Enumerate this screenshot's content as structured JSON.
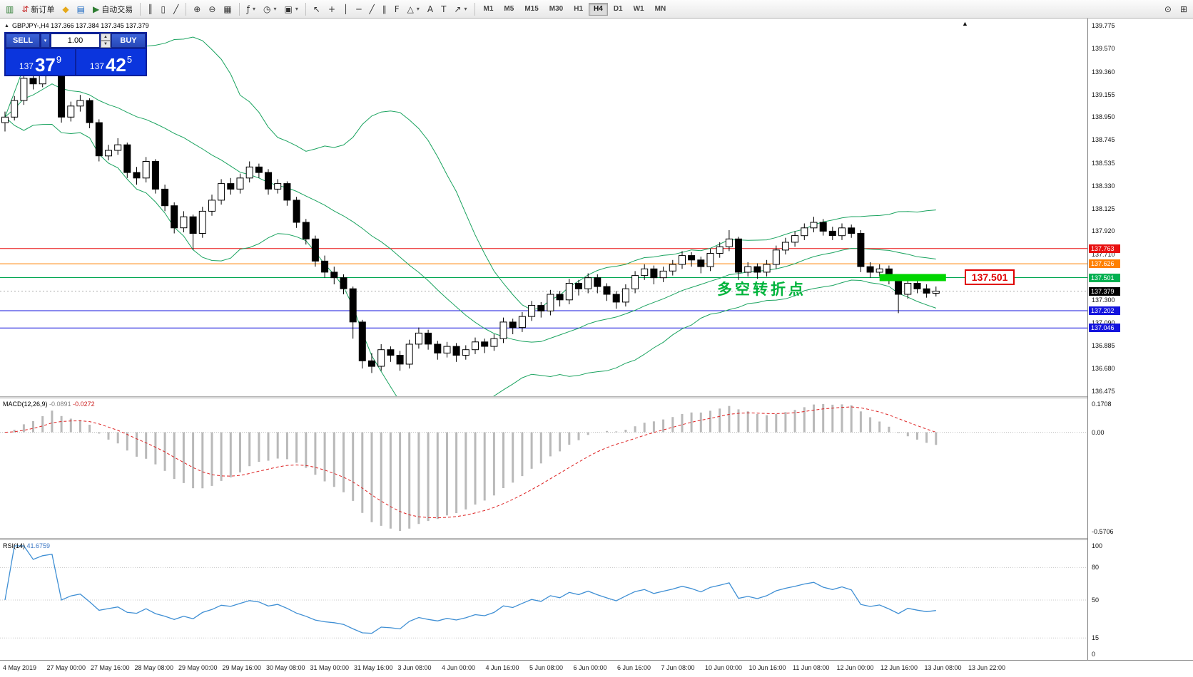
{
  "window": {
    "title": "GBPJPY-,H4"
  },
  "toolbar": {
    "groups": [
      {
        "name": "trade-group",
        "items": [
          {
            "name": "charts-window-button",
            "glyph": "▥",
            "color": "#2e7d32"
          },
          {
            "name": "new-order-button",
            "glyph": "⇵",
            "color": "#c62828",
            "label": "新订单"
          },
          {
            "name": "chart-profiles-button",
            "glyph": "◆",
            "color": "#e6a817"
          },
          {
            "name": "market-depth-button",
            "glyph": "▤",
            "color": "#1565c0"
          },
          {
            "name": "autotrading-button",
            "glyph": "▶",
            "color": "#2e7d32",
            "label": "自动交易"
          }
        ]
      },
      {
        "name": "chart-type-group",
        "items": [
          {
            "name": "bar-chart-button",
            "glyph": "║"
          },
          {
            "name": "candlestick-chart-button",
            "glyph": "▯"
          },
          {
            "name": "line-chart-button",
            "glyph": "╱"
          }
        ]
      },
      {
        "name": "zoom-group",
        "items": [
          {
            "name": "zoom-in-button",
            "glyph": "⊕"
          },
          {
            "name": "zoom-out-button",
            "glyph": "⊖"
          },
          {
            "name": "tile-windows-button",
            "glyph": "▦"
          }
        ]
      },
      {
        "name": "chart-tools-group",
        "items": [
          {
            "name": "indicators-button",
            "glyph": "ƒ",
            "caret": true
          },
          {
            "name": "periods-button",
            "glyph": "◷",
            "caret": true
          },
          {
            "name": "templates-button",
            "glyph": "▣",
            "caret": true
          }
        ]
      },
      {
        "name": "draw-tools-group",
        "items": [
          {
            "name": "cursor-button",
            "glyph": "↖"
          },
          {
            "name": "crosshair-button",
            "glyph": "+"
          },
          {
            "name": "vertical-line-button",
            "glyph": "│"
          },
          {
            "name": "horizontal-line-button",
            "glyph": "─"
          },
          {
            "name": "trendline-button",
            "glyph": "╱"
          },
          {
            "name": "channel-button",
            "glyph": "∥"
          },
          {
            "name": "fibonacci-button",
            "glyph": "F"
          },
          {
            "name": "shapes-button",
            "glyph": "△",
            "caret": true
          },
          {
            "name": "text-button",
            "glyph": "A"
          },
          {
            "name": "text-label-button",
            "glyph": "T"
          },
          {
            "name": "arrows-button",
            "glyph": "↗",
            "caret": true
          }
        ]
      }
    ],
    "timeframes": {
      "items": [
        "M1",
        "M5",
        "M15",
        "M30",
        "H1",
        "H4",
        "D1",
        "W1",
        "MN"
      ],
      "selected": "H4"
    },
    "right_items": [
      {
        "name": "search-button",
        "glyph": "⊙"
      },
      {
        "name": "new-chart-button",
        "glyph": "⊞"
      }
    ]
  },
  "symbol_info": {
    "arrow": "▲",
    "text": "GBPJPY-,H4 137.366 137.384 137.345 137.379"
  },
  "trade_panel": {
    "sell_label": "SELL",
    "buy_label": "BUY",
    "volume": "1.00",
    "sell_price": {
      "prefix": "137",
      "big": "37",
      "sup": "9"
    },
    "buy_price": {
      "prefix": "137",
      "big": "42",
      "sup": "5"
    }
  },
  "chart_data": {
    "type": "candlestick",
    "symbol": "GBPJPY",
    "timeframe": "H4",
    "price_ticks": [
      "139.775",
      "139.570",
      "139.360",
      "139.155",
      "138.950",
      "138.745",
      "138.535",
      "138.330",
      "138.125",
      "137.920",
      "137.710",
      "137.505",
      "137.300",
      "137.090",
      "136.885",
      "136.680",
      "136.475"
    ],
    "time_labels": [
      "4 May 2019",
      "27 May 00:00",
      "27 May 16:00",
      "28 May 08:00",
      "29 May 00:00",
      "29 May 16:00",
      "30 May 08:00",
      "31 May 00:00",
      "31 May 16:00",
      "3 Jun 08:00",
      "4 Jun 00:00",
      "4 Jun 16:00",
      "5 Jun 08:00",
      "6 Jun 00:00",
      "6 Jun 16:00",
      "7 Jun 08:00",
      "10 Jun 00:00",
      "10 Jun 16:00",
      "11 Jun 08:00",
      "12 Jun 00:00",
      "12 Jun 16:00",
      "13 Jun 08:00",
      "13 Jun 22:00"
    ],
    "candles": [
      [
        138.9,
        139.0,
        138.82,
        138.95
      ],
      [
        138.95,
        139.14,
        138.92,
        139.1
      ],
      [
        139.1,
        139.34,
        139.06,
        139.3
      ],
      [
        139.3,
        139.36,
        139.2,
        139.25
      ],
      [
        139.25,
        139.44,
        139.22,
        139.4
      ],
      [
        139.4,
        139.55,
        139.36,
        139.5
      ],
      [
        139.5,
        139.53,
        138.9,
        138.95
      ],
      [
        138.95,
        139.09,
        138.91,
        139.05
      ],
      [
        139.05,
        139.15,
        139.0,
        139.1
      ],
      [
        139.1,
        139.12,
        138.85,
        138.9
      ],
      [
        138.9,
        138.93,
        138.55,
        138.6
      ],
      [
        138.6,
        138.7,
        138.56,
        138.65
      ],
      [
        138.65,
        138.76,
        138.61,
        138.7
      ],
      [
        138.7,
        138.72,
        138.4,
        138.45
      ],
      [
        138.45,
        138.5,
        138.34,
        138.4
      ],
      [
        138.4,
        138.59,
        138.36,
        138.55
      ],
      [
        138.55,
        138.57,
        138.26,
        138.3
      ],
      [
        138.3,
        138.34,
        138.1,
        138.15
      ],
      [
        138.15,
        138.18,
        137.9,
        137.95
      ],
      [
        137.95,
        138.1,
        137.91,
        138.05
      ],
      [
        138.05,
        138.07,
        137.75,
        137.9
      ],
      [
        137.9,
        138.14,
        137.86,
        138.1
      ],
      [
        138.1,
        138.25,
        138.06,
        138.2
      ],
      [
        138.2,
        138.39,
        138.16,
        138.35
      ],
      [
        138.35,
        138.4,
        138.25,
        138.3
      ],
      [
        138.3,
        138.44,
        138.26,
        138.4
      ],
      [
        138.4,
        138.55,
        138.36,
        138.5
      ],
      [
        138.5,
        138.53,
        138.4,
        138.45
      ],
      [
        138.45,
        138.48,
        138.25,
        138.3
      ],
      [
        138.3,
        138.39,
        138.26,
        138.35
      ],
      [
        138.35,
        138.37,
        138.15,
        138.2
      ],
      [
        138.2,
        138.23,
        137.95,
        138.0
      ],
      [
        138.0,
        138.03,
        137.8,
        137.85
      ],
      [
        137.85,
        137.88,
        137.6,
        137.65
      ],
      [
        137.65,
        137.7,
        137.5,
        137.55
      ],
      [
        137.55,
        137.6,
        137.44,
        137.5
      ],
      [
        137.5,
        137.53,
        137.35,
        137.4
      ],
      [
        137.4,
        137.42,
        136.95,
        137.1
      ],
      [
        137.1,
        137.12,
        136.68,
        136.75
      ],
      [
        136.75,
        136.82,
        136.64,
        136.7
      ],
      [
        136.7,
        136.9,
        136.66,
        136.85
      ],
      [
        136.85,
        136.88,
        136.74,
        136.8
      ],
      [
        136.8,
        136.84,
        136.66,
        136.72
      ],
      [
        136.72,
        136.94,
        136.68,
        136.9
      ],
      [
        136.9,
        137.05,
        136.86,
        137.0
      ],
      [
        137.0,
        137.03,
        136.85,
        136.9
      ],
      [
        136.9,
        136.93,
        136.76,
        136.82
      ],
      [
        136.82,
        136.92,
        136.78,
        136.88
      ],
      [
        136.88,
        136.91,
        136.74,
        136.8
      ],
      [
        136.8,
        136.89,
        136.76,
        136.85
      ],
      [
        136.85,
        136.96,
        136.81,
        136.92
      ],
      [
        136.92,
        136.95,
        136.82,
        136.88
      ],
      [
        136.88,
        136.99,
        136.84,
        136.95
      ],
      [
        136.95,
        137.14,
        136.91,
        137.1
      ],
      [
        137.1,
        137.13,
        136.99,
        137.05
      ],
      [
        137.05,
        137.19,
        137.01,
        137.15
      ],
      [
        137.15,
        137.29,
        137.11,
        137.25
      ],
      [
        137.25,
        137.28,
        137.14,
        137.2
      ],
      [
        137.2,
        137.39,
        137.16,
        137.35
      ],
      [
        137.35,
        137.38,
        137.24,
        137.3
      ],
      [
        137.3,
        137.49,
        137.26,
        137.45
      ],
      [
        137.45,
        137.48,
        137.34,
        137.4
      ],
      [
        137.4,
        137.54,
        137.36,
        137.5
      ],
      [
        137.5,
        137.53,
        137.36,
        137.42
      ],
      [
        137.42,
        137.45,
        137.29,
        137.35
      ],
      [
        137.35,
        137.38,
        137.22,
        137.28
      ],
      [
        137.28,
        137.44,
        137.24,
        137.4
      ],
      [
        137.4,
        137.56,
        137.36,
        137.52
      ],
      [
        137.52,
        137.62,
        137.48,
        137.58
      ],
      [
        137.58,
        137.61,
        137.44,
        137.5
      ],
      [
        137.5,
        137.6,
        137.46,
        137.56
      ],
      [
        137.56,
        137.66,
        137.52,
        137.62
      ],
      [
        137.62,
        137.74,
        137.58,
        137.7
      ],
      [
        137.7,
        137.73,
        137.6,
        137.66
      ],
      [
        137.66,
        137.69,
        137.54,
        137.6
      ],
      [
        137.6,
        137.76,
        137.56,
        137.72
      ],
      [
        137.72,
        137.82,
        137.68,
        137.78
      ],
      [
        137.78,
        137.93,
        137.74,
        137.85
      ],
      [
        137.85,
        137.87,
        137.48,
        137.55
      ],
      [
        137.55,
        137.64,
        137.51,
        137.6
      ],
      [
        137.6,
        137.63,
        137.49,
        137.55
      ],
      [
        137.55,
        137.66,
        137.51,
        137.62
      ],
      [
        137.62,
        137.79,
        137.58,
        137.75
      ],
      [
        137.75,
        137.86,
        137.71,
        137.82
      ],
      [
        137.82,
        137.92,
        137.78,
        137.88
      ],
      [
        137.88,
        137.99,
        137.84,
        137.95
      ],
      [
        137.95,
        138.05,
        137.91,
        138.0
      ],
      [
        138.0,
        138.03,
        137.88,
        137.92
      ],
      [
        137.92,
        137.96,
        137.84,
        137.88
      ],
      [
        137.88,
        137.99,
        137.84,
        137.95
      ],
      [
        137.95,
        137.98,
        137.86,
        137.9
      ],
      [
        137.9,
        137.93,
        137.55,
        137.6
      ],
      [
        137.6,
        137.64,
        137.5,
        137.55
      ],
      [
        137.55,
        137.62,
        137.51,
        137.58
      ],
      [
        137.58,
        137.61,
        137.44,
        137.48
      ],
      [
        137.48,
        137.51,
        137.18,
        137.35
      ],
      [
        137.35,
        137.49,
        137.31,
        137.45
      ],
      [
        137.45,
        137.48,
        137.36,
        137.4
      ],
      [
        137.4,
        137.44,
        137.32,
        137.36
      ],
      [
        137.36,
        137.42,
        137.33,
        137.379
      ]
    ],
    "bollinger": {
      "period": 20,
      "deviation": 2,
      "color": "#1aa35f"
    },
    "hlines": [
      {
        "price": 137.763,
        "label": "137.763",
        "color": "#e81010",
        "badge_bg": "#e81010"
      },
      {
        "price": 137.626,
        "label": "137.626",
        "color": "#ff8000",
        "badge_bg": "#ff8000"
      },
      {
        "price": 137.501,
        "label": "137.501",
        "color": "#00a651",
        "badge_bg": "#00b050"
      },
      {
        "price": 137.202,
        "label": "137.202",
        "color": "#1414dd",
        "badge_bg": "#1414dd"
      },
      {
        "price": 137.046,
        "label": "137.046",
        "color": "#1414dd",
        "badge_bg": "#1414dd"
      }
    ],
    "current_price": {
      "price": 137.379,
      "label": "137.379",
      "badge_bg": "#000000"
    },
    "zone_bar": {
      "price": 137.501,
      "color": "#00d600"
    },
    "annotation": {
      "text": "多空转折点",
      "color": "#00b43c"
    },
    "price_tag": {
      "text": "137.501",
      "color": "#e00000"
    },
    "macd": {
      "label": {
        "name": "MACD(12,26,9)",
        "main": "-0.0891",
        "signal": "-0.0272"
      },
      "scale": {
        "max": "0.1708",
        "zero": "0.00",
        "min": "-0.5706"
      },
      "fast": 12,
      "slow": 26,
      "signal_period": 9
    },
    "rsi": {
      "label": {
        "name": "RSI(14)",
        "value": "41.6759"
      },
      "scale": [
        "100",
        "80",
        "50",
        "15",
        "0"
      ],
      "levels": [
        80,
        50,
        15
      ],
      "period": 14
    }
  }
}
